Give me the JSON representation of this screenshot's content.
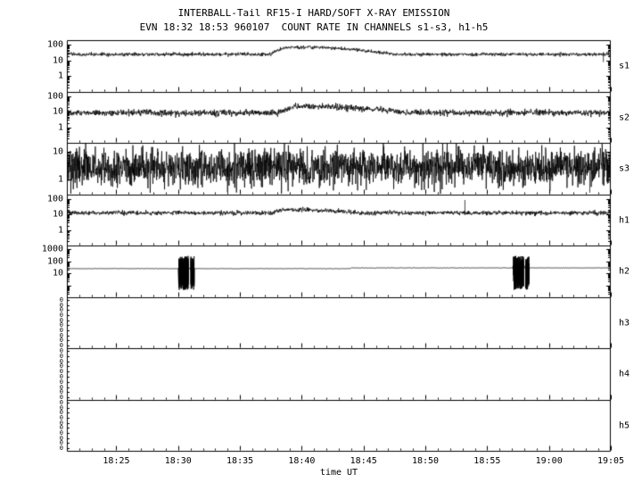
{
  "chart_data": {
    "type": "line",
    "title": "INTERBALL-Tail RF15-I HARD/SOFT X-RAY EMISSION",
    "subtitle": "EVN 18:32 18:53 960107  COUNT RATE IN CHANNELS s1-s3, h1-h5",
    "xlabel": "time UT",
    "grid": false,
    "legend": false,
    "line_color": "#000000",
    "background_color": "#ffffff",
    "x_axis": {
      "min_minute": 0,
      "max_minute": 44,
      "ticks": [
        {
          "label": "18:25",
          "minute": 4
        },
        {
          "label": "18:30",
          "minute": 9
        },
        {
          "label": "18:35",
          "minute": 14
        },
        {
          "label": "18:40",
          "minute": 19
        },
        {
          "label": "18:45",
          "minute": 24
        },
        {
          "label": "18:50",
          "minute": 29
        },
        {
          "label": "18:55",
          "minute": 34
        },
        {
          "label": "19:00",
          "minute": 39
        },
        {
          "label": "19:05",
          "minute": 44
        }
      ]
    },
    "panels": [
      {
        "id": "s1",
        "label": "s1",
        "scale": "log",
        "ylim": [
          0.1,
          200
        ],
        "yticks": [
          {
            "label": "100",
            "value": 100
          },
          {
            "label": "10",
            "value": 10
          },
          {
            "label": "1",
            "value": 1
          }
        ],
        "trace": true,
        "baseline": 25,
        "noise_dex": 0.055,
        "dt": 0.025,
        "bumps": [
          {
            "start": 16.5,
            "rise": 1.2,
            "plateau_end": 20.5,
            "end": 26.5,
            "factor": 2.8
          }
        ],
        "spikes": [
          {
            "minute": 43.4,
            "value": 8
          }
        ]
      },
      {
        "id": "s2",
        "label": "s2",
        "scale": "log",
        "ylim": [
          0.1,
          200
        ],
        "yticks": [
          {
            "label": "100",
            "value": 100
          },
          {
            "label": "10",
            "value": 10
          },
          {
            "label": "1",
            "value": 1
          }
        ],
        "trace": true,
        "baseline": 9,
        "noise_dex": 0.1,
        "dt": 0.025,
        "bumps": [
          {
            "start": 17,
            "rise": 1.5,
            "plateau_end": 21,
            "end": 27.5,
            "factor": 2.5
          }
        ],
        "spikes": []
      },
      {
        "id": "s3",
        "label": "s3",
        "scale": "log",
        "ylim": [
          0.3,
          20
        ],
        "yticks": [
          {
            "label": "10",
            "value": 10
          },
          {
            "label": "1",
            "value": 1
          }
        ],
        "trace": true,
        "baseline": 2.8,
        "noise_dex": 0.33,
        "dt": 0.02,
        "down_spike_prob": 0.006,
        "down_spike_factor": 0.3,
        "spikes": [
          {
            "minute": 42.3,
            "value": 0.35
          }
        ]
      },
      {
        "id": "h1",
        "label": "h1",
        "scale": "log",
        "ylim": [
          0.1,
          200
        ],
        "yticks": [
          {
            "label": "100",
            "value": 100
          },
          {
            "label": "10",
            "value": 10
          },
          {
            "label": "1",
            "value": 1
          }
        ],
        "trace": true,
        "baseline": 13,
        "noise_dex": 0.07,
        "dt": 0.025,
        "bumps": [
          {
            "start": 16.5,
            "rise": 1.0,
            "plateau_end": 19.5,
            "end": 23.5,
            "factor": 1.6
          }
        ],
        "spikes": [
          {
            "minute": 32.2,
            "value": 90
          }
        ]
      },
      {
        "id": "h2",
        "label": "h2",
        "scale": "log",
        "ylim": [
          0.1,
          2000
        ],
        "yticks": [
          {
            "label": "1000",
            "value": 1000
          },
          {
            "label": "100",
            "value": 100
          },
          {
            "label": "10",
            "value": 10
          }
        ],
        "trace": true,
        "baseline": 24,
        "noise_dex": 0.012,
        "dt": 0.05,
        "step": {
          "minute": 23,
          "factor": 1.15
        },
        "bursts": [
          {
            "start": 9.0,
            "end": 9.85
          },
          {
            "start": 10.0,
            "end": 10.3
          },
          {
            "start": 36.1,
            "end": 36.95
          },
          {
            "start": 37.1,
            "end": 37.4
          }
        ],
        "burst_log_range": [
          -0.4,
          2.45
        ],
        "spikes": []
      },
      {
        "id": "h3",
        "label": "h3",
        "scale": "linear",
        "ylim": [
          0,
          1
        ],
        "trace": false,
        "empty_tick_count": 10,
        "empty_tick_label": "0"
      },
      {
        "id": "h4",
        "label": "h4",
        "scale": "linear",
        "ylim": [
          0,
          1
        ],
        "trace": false,
        "empty_tick_count": 10,
        "empty_tick_label": "0"
      },
      {
        "id": "h5",
        "label": "h5",
        "scale": "linear",
        "ylim": [
          0,
          1
        ],
        "trace": false,
        "empty_tick_count": 10,
        "empty_tick_label": "0"
      }
    ]
  }
}
